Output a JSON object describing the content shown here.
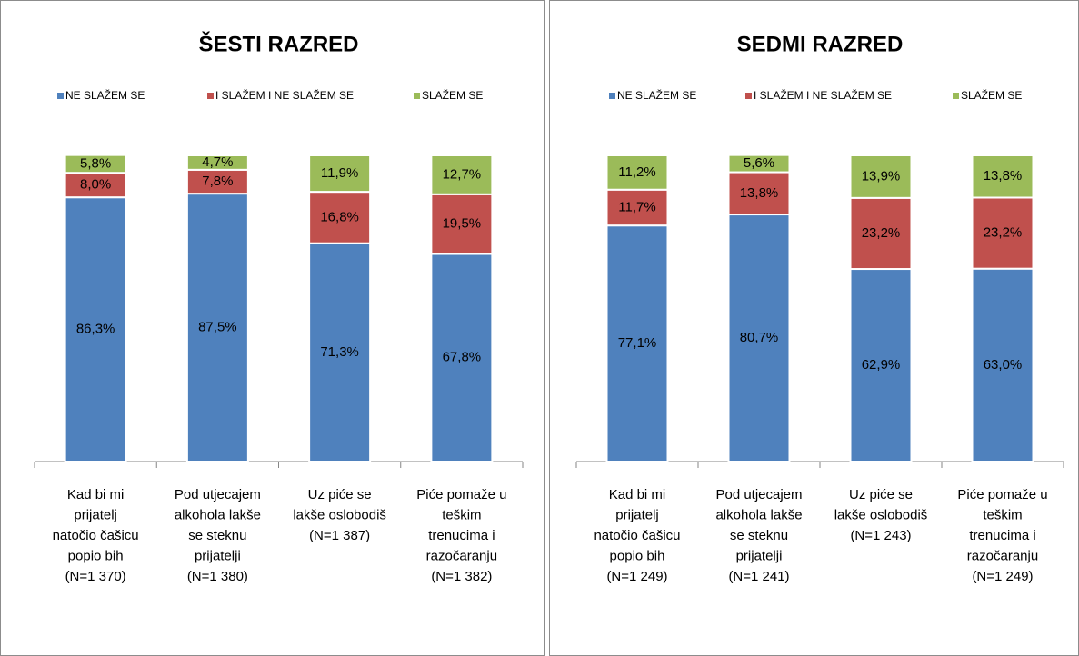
{
  "chart_data": [
    {
      "type": "stacked_bar",
      "title": "ŠESTI RAZRED",
      "categories": [
        [
          "Kad bi mi",
          "prijatelj",
          "natočio čašicu",
          "popio bih",
          "(N=1 370)"
        ],
        [
          "Pod utjecajem",
          "alkohola lakše",
          "se steknu",
          "prijatelji",
          "(N=1 380)"
        ],
        [
          "Uz piće se",
          "lakše oslobodiš",
          "(N=1 387)"
        ],
        [
          "Piće pomaže u",
          "teškim",
          "trenucima i",
          "razočaranju",
          "(N=1 382)"
        ]
      ],
      "ylim": [
        0,
        100
      ],
      "series": [
        {
          "name": "NE SLAŽEM SE",
          "color": "#4f81bd",
          "values": [
            86.3,
            87.5,
            71.3,
            67.8
          ],
          "value_labels": [
            "86,3%",
            "87,5%",
            "71,3%",
            "67,8%"
          ]
        },
        {
          "name": "I SLAŽEM I NE SLAŽEM SE",
          "color": "#c0504d",
          "values": [
            8.0,
            7.8,
            16.8,
            19.5
          ],
          "value_labels": [
            "8,0%",
            "7,8%",
            "16,8%",
            "19,5%"
          ]
        },
        {
          "name": "SLAŽEM SE",
          "color": "#9bbb59",
          "values": [
            5.8,
            4.7,
            11.9,
            12.7
          ],
          "value_labels": [
            "5,8%",
            "4,7%",
            "11,9%",
            "12,7%"
          ]
        }
      ]
    },
    {
      "type": "stacked_bar",
      "title": "SEDMI RAZRED",
      "categories": [
        [
          "Kad bi mi",
          "prijatelj",
          "natočio čašicu",
          "popio bih",
          "(N=1 249)"
        ],
        [
          "Pod utjecajem",
          "alkohola lakše",
          "se steknu",
          "prijatelji",
          "(N=1 241)"
        ],
        [
          "Uz piće se",
          "lakše oslobodiš",
          "(N=1 243)"
        ],
        [
          "Piće pomaže u",
          "teškim",
          "trenucima i",
          "razočaranju",
          "(N=1 249)"
        ]
      ],
      "ylim": [
        0,
        100
      ],
      "series": [
        {
          "name": "NE SLAŽEM SE",
          "color": "#4f81bd",
          "values": [
            77.1,
            80.7,
            62.9,
            63.0
          ],
          "value_labels": [
            "77,1%",
            "80,7%",
            "62,9%",
            "63,0%"
          ]
        },
        {
          "name": "I SLAŽEM I NE SLAŽEM SE",
          "color": "#c0504d",
          "values": [
            11.7,
            13.8,
            23.2,
            23.2
          ],
          "value_labels": [
            "11,7%",
            "13,8%",
            "23,2%",
            "23,2%"
          ]
        },
        {
          "name": "SLAŽEM SE",
          "color": "#9bbb59",
          "values": [
            11.2,
            5.6,
            13.9,
            13.8
          ],
          "value_labels": [
            "11,2%",
            "5,6%",
            "13,9%",
            "13,8%"
          ]
        }
      ]
    }
  ]
}
